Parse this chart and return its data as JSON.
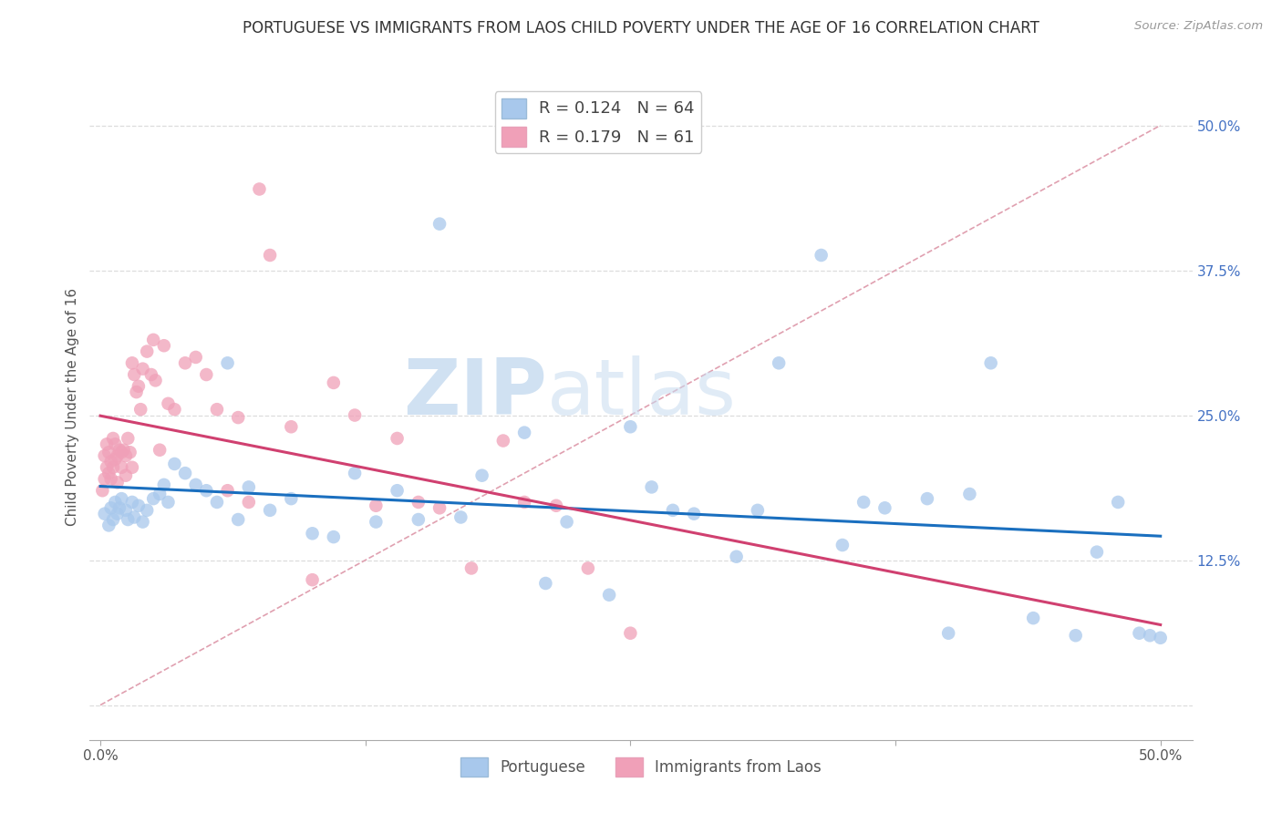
{
  "title": "PORTUGUESE VS IMMIGRANTS FROM LAOS CHILD POVERTY UNDER THE AGE OF 16 CORRELATION CHART",
  "source": "Source: ZipAtlas.com",
  "ylabel": "Child Poverty Under the Age of 16",
  "blue_color": "#A8C8EC",
  "pink_color": "#F0A0B8",
  "blue_line_color": "#1A6FBF",
  "pink_line_color": "#D04070",
  "dashed_line_color": "#E0A0B0",
  "grid_color": "#DDDDDD",
  "R_blue": 0.124,
  "N_blue": 64,
  "R_pink": 0.179,
  "N_pink": 61,
  "watermark_zip": "ZIP",
  "watermark_atlas": "atlas",
  "blue_x": [
    0.002,
    0.004,
    0.005,
    0.006,
    0.007,
    0.008,
    0.009,
    0.01,
    0.012,
    0.013,
    0.015,
    0.016,
    0.018,
    0.02,
    0.022,
    0.025,
    0.028,
    0.03,
    0.032,
    0.035,
    0.04,
    0.045,
    0.05,
    0.055,
    0.06,
    0.065,
    0.07,
    0.08,
    0.09,
    0.1,
    0.11,
    0.12,
    0.13,
    0.14,
    0.15,
    0.16,
    0.17,
    0.18,
    0.2,
    0.21,
    0.22,
    0.24,
    0.25,
    0.26,
    0.27,
    0.28,
    0.3,
    0.31,
    0.32,
    0.34,
    0.35,
    0.36,
    0.37,
    0.39,
    0.4,
    0.41,
    0.42,
    0.44,
    0.46,
    0.47,
    0.48,
    0.49,
    0.495,
    0.5
  ],
  "blue_y": [
    0.165,
    0.155,
    0.17,
    0.16,
    0.175,
    0.165,
    0.17,
    0.178,
    0.168,
    0.16,
    0.175,
    0.162,
    0.172,
    0.158,
    0.168,
    0.178,
    0.182,
    0.19,
    0.175,
    0.208,
    0.2,
    0.19,
    0.185,
    0.175,
    0.295,
    0.16,
    0.188,
    0.168,
    0.178,
    0.148,
    0.145,
    0.2,
    0.158,
    0.185,
    0.16,
    0.415,
    0.162,
    0.198,
    0.235,
    0.105,
    0.158,
    0.095,
    0.24,
    0.188,
    0.168,
    0.165,
    0.128,
    0.168,
    0.295,
    0.388,
    0.138,
    0.175,
    0.17,
    0.178,
    0.062,
    0.182,
    0.295,
    0.075,
    0.06,
    0.132,
    0.175,
    0.062,
    0.06,
    0.058
  ],
  "pink_x": [
    0.001,
    0.002,
    0.002,
    0.003,
    0.003,
    0.004,
    0.004,
    0.005,
    0.005,
    0.006,
    0.006,
    0.007,
    0.007,
    0.008,
    0.008,
    0.009,
    0.01,
    0.01,
    0.011,
    0.012,
    0.012,
    0.013,
    0.014,
    0.015,
    0.015,
    0.016,
    0.017,
    0.018,
    0.019,
    0.02,
    0.022,
    0.024,
    0.025,
    0.026,
    0.028,
    0.03,
    0.032,
    0.035,
    0.04,
    0.045,
    0.05,
    0.055,
    0.06,
    0.065,
    0.07,
    0.075,
    0.08,
    0.09,
    0.1,
    0.11,
    0.12,
    0.13,
    0.14,
    0.15,
    0.16,
    0.175,
    0.19,
    0.2,
    0.215,
    0.23,
    0.25
  ],
  "pink_y": [
    0.185,
    0.195,
    0.215,
    0.205,
    0.225,
    0.2,
    0.218,
    0.21,
    0.195,
    0.205,
    0.23,
    0.212,
    0.225,
    0.192,
    0.215,
    0.22,
    0.218,
    0.205,
    0.22,
    0.215,
    0.198,
    0.23,
    0.218,
    0.295,
    0.205,
    0.285,
    0.27,
    0.275,
    0.255,
    0.29,
    0.305,
    0.285,
    0.315,
    0.28,
    0.22,
    0.31,
    0.26,
    0.255,
    0.295,
    0.3,
    0.285,
    0.255,
    0.185,
    0.248,
    0.175,
    0.445,
    0.388,
    0.24,
    0.108,
    0.278,
    0.25,
    0.172,
    0.23,
    0.175,
    0.17,
    0.118,
    0.228,
    0.175,
    0.172,
    0.118,
    0.062
  ]
}
